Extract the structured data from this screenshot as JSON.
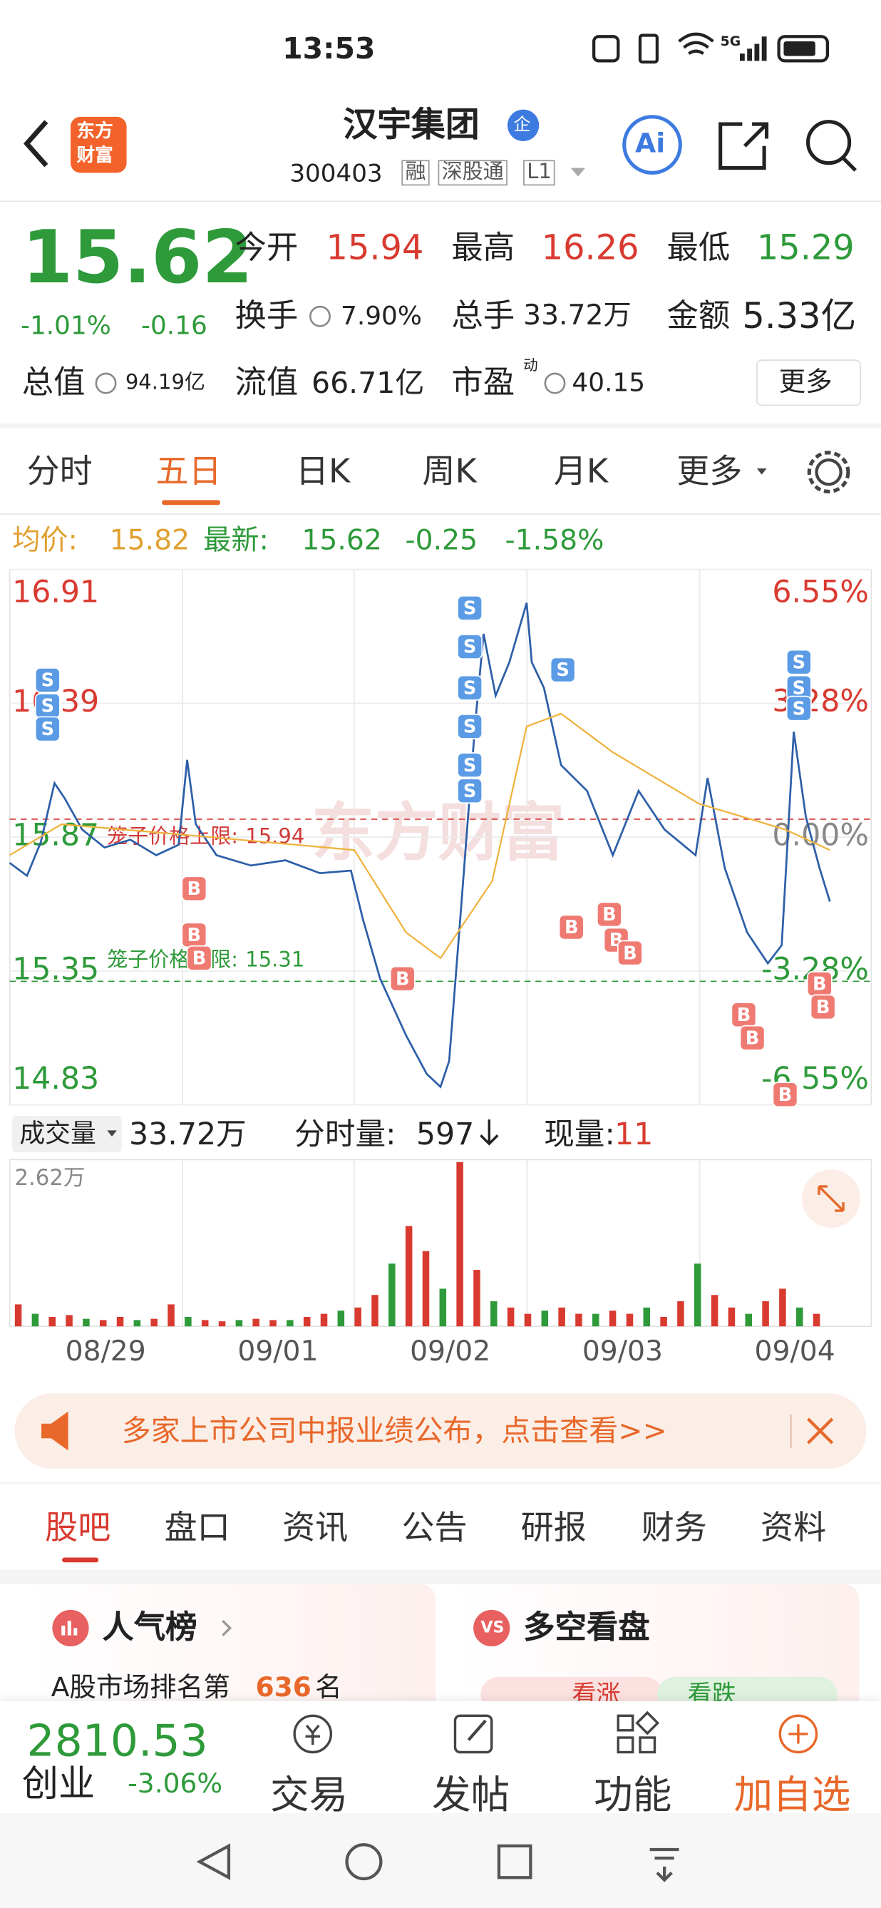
{
  "status": {
    "time": "13:53",
    "network": "5G"
  },
  "header": {
    "logo": [
      "东方",
      "财富"
    ],
    "title": "汉宇集团",
    "badge": "企",
    "code": "300403",
    "tags": [
      "融",
      "深股通",
      "L1"
    ],
    "ai": "Ai"
  },
  "quote": {
    "price": "15.62",
    "change_pct": "-1.01%",
    "change": "-0.16",
    "fields": [
      {
        "label": "今开",
        "value": "15.94"
      },
      {
        "label": "最高",
        "value": "16.26"
      },
      {
        "label": "最低",
        "value": "15.29"
      },
      {
        "label": "换手",
        "value": "7.90%"
      },
      {
        "label": "总手",
        "value": "33.72万"
      },
      {
        "label": "金额",
        "value": "5.33亿"
      },
      {
        "label": "总值",
        "value": "94.19亿"
      },
      {
        "label": "流值",
        "value": "66.71亿"
      },
      {
        "label": "市盈",
        "sup": "动",
        "value": "40.15"
      }
    ],
    "more": "更多"
  },
  "tabs": {
    "items": [
      "分时",
      "五日",
      "日K",
      "周K",
      "月K",
      "更多"
    ],
    "active": 1
  },
  "summary": {
    "avg_label": "均价:",
    "avg": "15.82",
    "latest_label": "最新:",
    "latest": "15.62",
    "change": "-0.25",
    "change_pct": "-1.58%"
  },
  "chart_data": {
    "type": "line",
    "watermark": "东方财富",
    "ylim": [
      14.83,
      16.91
    ],
    "yticks": [
      16.91,
      16.39,
      15.87,
      15.35,
      14.83
    ],
    "y2lim": [
      -6.55,
      6.55
    ],
    "y2ticks": [
      {
        "value": 6.55,
        "label": "6.55%"
      },
      {
        "value": 3.28,
        "label": "3.28%"
      },
      {
        "value": 0,
        "label": "0.00%"
      },
      {
        "value": -3.28,
        "label": "-3.28%"
      },
      {
        "value": -6.55,
        "label": "-6.55%"
      }
    ],
    "xlim": [
      0,
      5
    ],
    "xticks": [
      {
        "value": 0.5,
        "label": "08/29"
      },
      {
        "value": 1.5,
        "label": "09/01"
      },
      {
        "value": 2.5,
        "label": "09/02"
      },
      {
        "value": 3.5,
        "label": "09/03"
      },
      {
        "value": 4.5,
        "label": "09/04"
      }
    ],
    "series": [
      {
        "name": "price",
        "color": "#2d5fa8",
        "x": [
          0,
          0.1,
          0.18,
          0.26,
          0.32,
          0.42,
          0.55,
          0.7,
          0.85,
          0.98,
          1.03,
          1.08,
          1.2,
          1.4,
          1.6,
          1.8,
          1.98,
          2.05,
          2.15,
          2.3,
          2.42,
          2.5,
          2.55,
          2.62,
          2.7,
          2.75,
          2.82,
          2.9,
          3.0,
          3.03,
          3.1,
          3.2,
          3.35,
          3.5,
          3.65,
          3.8,
          3.98,
          4.05,
          4.15,
          4.28,
          4.4,
          4.48,
          4.55,
          4.62,
          4.7,
          4.76
        ],
        "values": [
          15.77,
          15.72,
          15.85,
          16.08,
          16.02,
          15.9,
          15.83,
          15.86,
          15.8,
          15.84,
          16.17,
          15.92,
          15.8,
          15.76,
          15.78,
          15.73,
          15.74,
          15.55,
          15.32,
          15.1,
          14.95,
          14.9,
          15.0,
          15.6,
          16.3,
          16.66,
          16.42,
          16.55,
          16.78,
          16.55,
          16.45,
          16.15,
          16.05,
          15.8,
          16.05,
          15.9,
          15.8,
          16.1,
          15.75,
          15.5,
          15.38,
          15.45,
          16.28,
          15.95,
          15.75,
          15.62
        ]
      },
      {
        "name": "avg",
        "color": "#efb23c",
        "x": [
          0,
          0.3,
          1.0,
          1.5,
          2.0,
          2.3,
          2.5,
          2.8,
          3.0,
          3.2,
          3.5,
          4.0,
          4.5,
          4.76
        ],
        "values": [
          15.8,
          15.92,
          15.88,
          15.85,
          15.82,
          15.5,
          15.4,
          15.7,
          16.3,
          16.35,
          16.2,
          16.0,
          15.9,
          15.82
        ]
      }
    ],
    "limits": [
      {
        "label": "笼子价格上限:",
        "value": 15.94,
        "color": "#d23a3a"
      },
      {
        "label": "笼子价格下限:",
        "value": 15.31,
        "color": "#2e9a3a"
      }
    ],
    "markers": [
      {
        "text": "S",
        "x": 0.22,
        "y": 16.48
      },
      {
        "text": "S",
        "x": 0.22,
        "y": 16.38
      },
      {
        "text": "S",
        "x": 0.22,
        "y": 16.29
      },
      {
        "text": "B",
        "x": 1.07,
        "y": 15.67
      },
      {
        "text": "B",
        "x": 1.07,
        "y": 15.49
      },
      {
        "text": "B",
        "x": 1.1,
        "y": 15.4
      },
      {
        "text": "B",
        "x": 2.28,
        "y": 15.32
      },
      {
        "text": "S",
        "x": 2.67,
        "y": 16.76
      },
      {
        "text": "S",
        "x": 2.67,
        "y": 16.61
      },
      {
        "text": "S",
        "x": 2.67,
        "y": 16.45
      },
      {
        "text": "S",
        "x": 2.67,
        "y": 16.3
      },
      {
        "text": "S",
        "x": 2.67,
        "y": 16.15
      },
      {
        "text": "S",
        "x": 2.67,
        "y": 16.05
      },
      {
        "text": "S",
        "x": 3.21,
        "y": 16.52
      },
      {
        "text": "B",
        "x": 3.26,
        "y": 15.52
      },
      {
        "text": "B",
        "x": 3.48,
        "y": 15.57
      },
      {
        "text": "B",
        "x": 3.52,
        "y": 15.47
      },
      {
        "text": "B",
        "x": 3.6,
        "y": 15.42
      },
      {
        "text": "S",
        "x": 4.58,
        "y": 16.55
      },
      {
        "text": "S",
        "x": 4.58,
        "y": 16.45
      },
      {
        "text": "S",
        "x": 4.58,
        "y": 16.37
      },
      {
        "text": "B",
        "x": 4.26,
        "y": 15.18
      },
      {
        "text": "B",
        "x": 4.31,
        "y": 15.09
      },
      {
        "text": "B",
        "x": 4.5,
        "y": 14.87
      },
      {
        "text": "B",
        "x": 4.7,
        "y": 15.3
      },
      {
        "text": "B",
        "x": 4.72,
        "y": 15.21
      }
    ],
    "volume": {
      "label": "成交量",
      "total": "33.72万",
      "now_label": "分时量:",
      "now": "597",
      "cur_label": "现量:",
      "cur": "11",
      "ylim": [
        0,
        2.62
      ],
      "yticks": [
        {
          "value": 2.62,
          "label": "2.62万"
        }
      ],
      "values": [
        0.35,
        0.2,
        0.15,
        0.18,
        0.12,
        0.1,
        0.15,
        0.1,
        0.12,
        0.35,
        0.15,
        0.1,
        0.08,
        0.1,
        0.12,
        0.1,
        0.1,
        0.15,
        0.2,
        0.25,
        0.3,
        0.5,
        1.0,
        1.6,
        1.2,
        0.6,
        2.62,
        0.9,
        0.4,
        0.3,
        0.2,
        0.25,
        0.3,
        0.2,
        0.2,
        0.25,
        0.2,
        0.3,
        0.15,
        0.4,
        1.0,
        0.5,
        0.3,
        0.2,
        0.4,
        0.6,
        0.3,
        0.2
      ]
    }
  },
  "banner": {
    "text": "多家上市公司中报业绩公布，点击查看>>"
  },
  "sections": {
    "items": [
      "股吧",
      "盘口",
      "资讯",
      "公告",
      "研报",
      "财务",
      "资料"
    ],
    "active": 0
  },
  "cards": {
    "left": {
      "title": "人气榜",
      "text": "A股市场排名第",
      "rank": "636",
      "suffix": "名"
    },
    "right": {
      "icon": "VS",
      "title": "多空看盘",
      "up": "看涨",
      "down": "看跌"
    }
  },
  "bottom": {
    "index_value": "2810.53",
    "index_name": "创业",
    "index_change": "-3.06%",
    "items": [
      "交易",
      "发帖",
      "功能",
      "加自选"
    ]
  }
}
